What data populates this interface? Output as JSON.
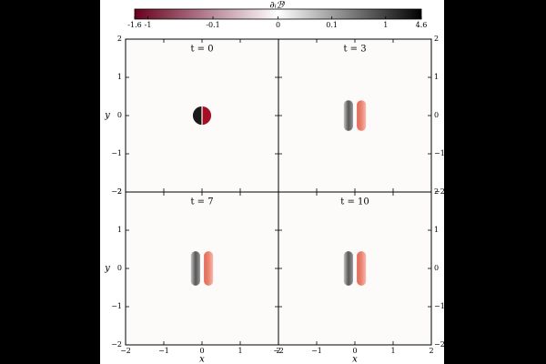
{
  "chart_data": {
    "type": "heatmap",
    "colorbar": {
      "label": "∂ᵢℬⁱ",
      "scale": "symlog",
      "linthresh": 0.1,
      "lim": [
        -1.6,
        4.6
      ],
      "ticks": [
        -1.6,
        -1,
        -0.1,
        0,
        0.1,
        1,
        4.6
      ],
      "colors": [
        "#67001f",
        "#ffffff",
        "#000000"
      ]
    },
    "panels": [
      {
        "title": "t = 0"
      },
      {
        "title": "t = 3"
      },
      {
        "title": "t = 7"
      },
      {
        "title": "t = 10"
      }
    ],
    "xlabel": "x",
    "ylabel": "y",
    "xlim": [
      -2,
      2
    ],
    "ylim": [
      -2,
      2
    ],
    "xticks": [
      {
        "value": -2,
        "label": "−2"
      },
      {
        "value": -1,
        "label": "−1"
      },
      0,
      1,
      2
    ],
    "yticks": [
      {
        "value": -2,
        "label": "−2"
      },
      {
        "value": -1,
        "label": "−1"
      },
      0,
      1,
      2
    ]
  }
}
